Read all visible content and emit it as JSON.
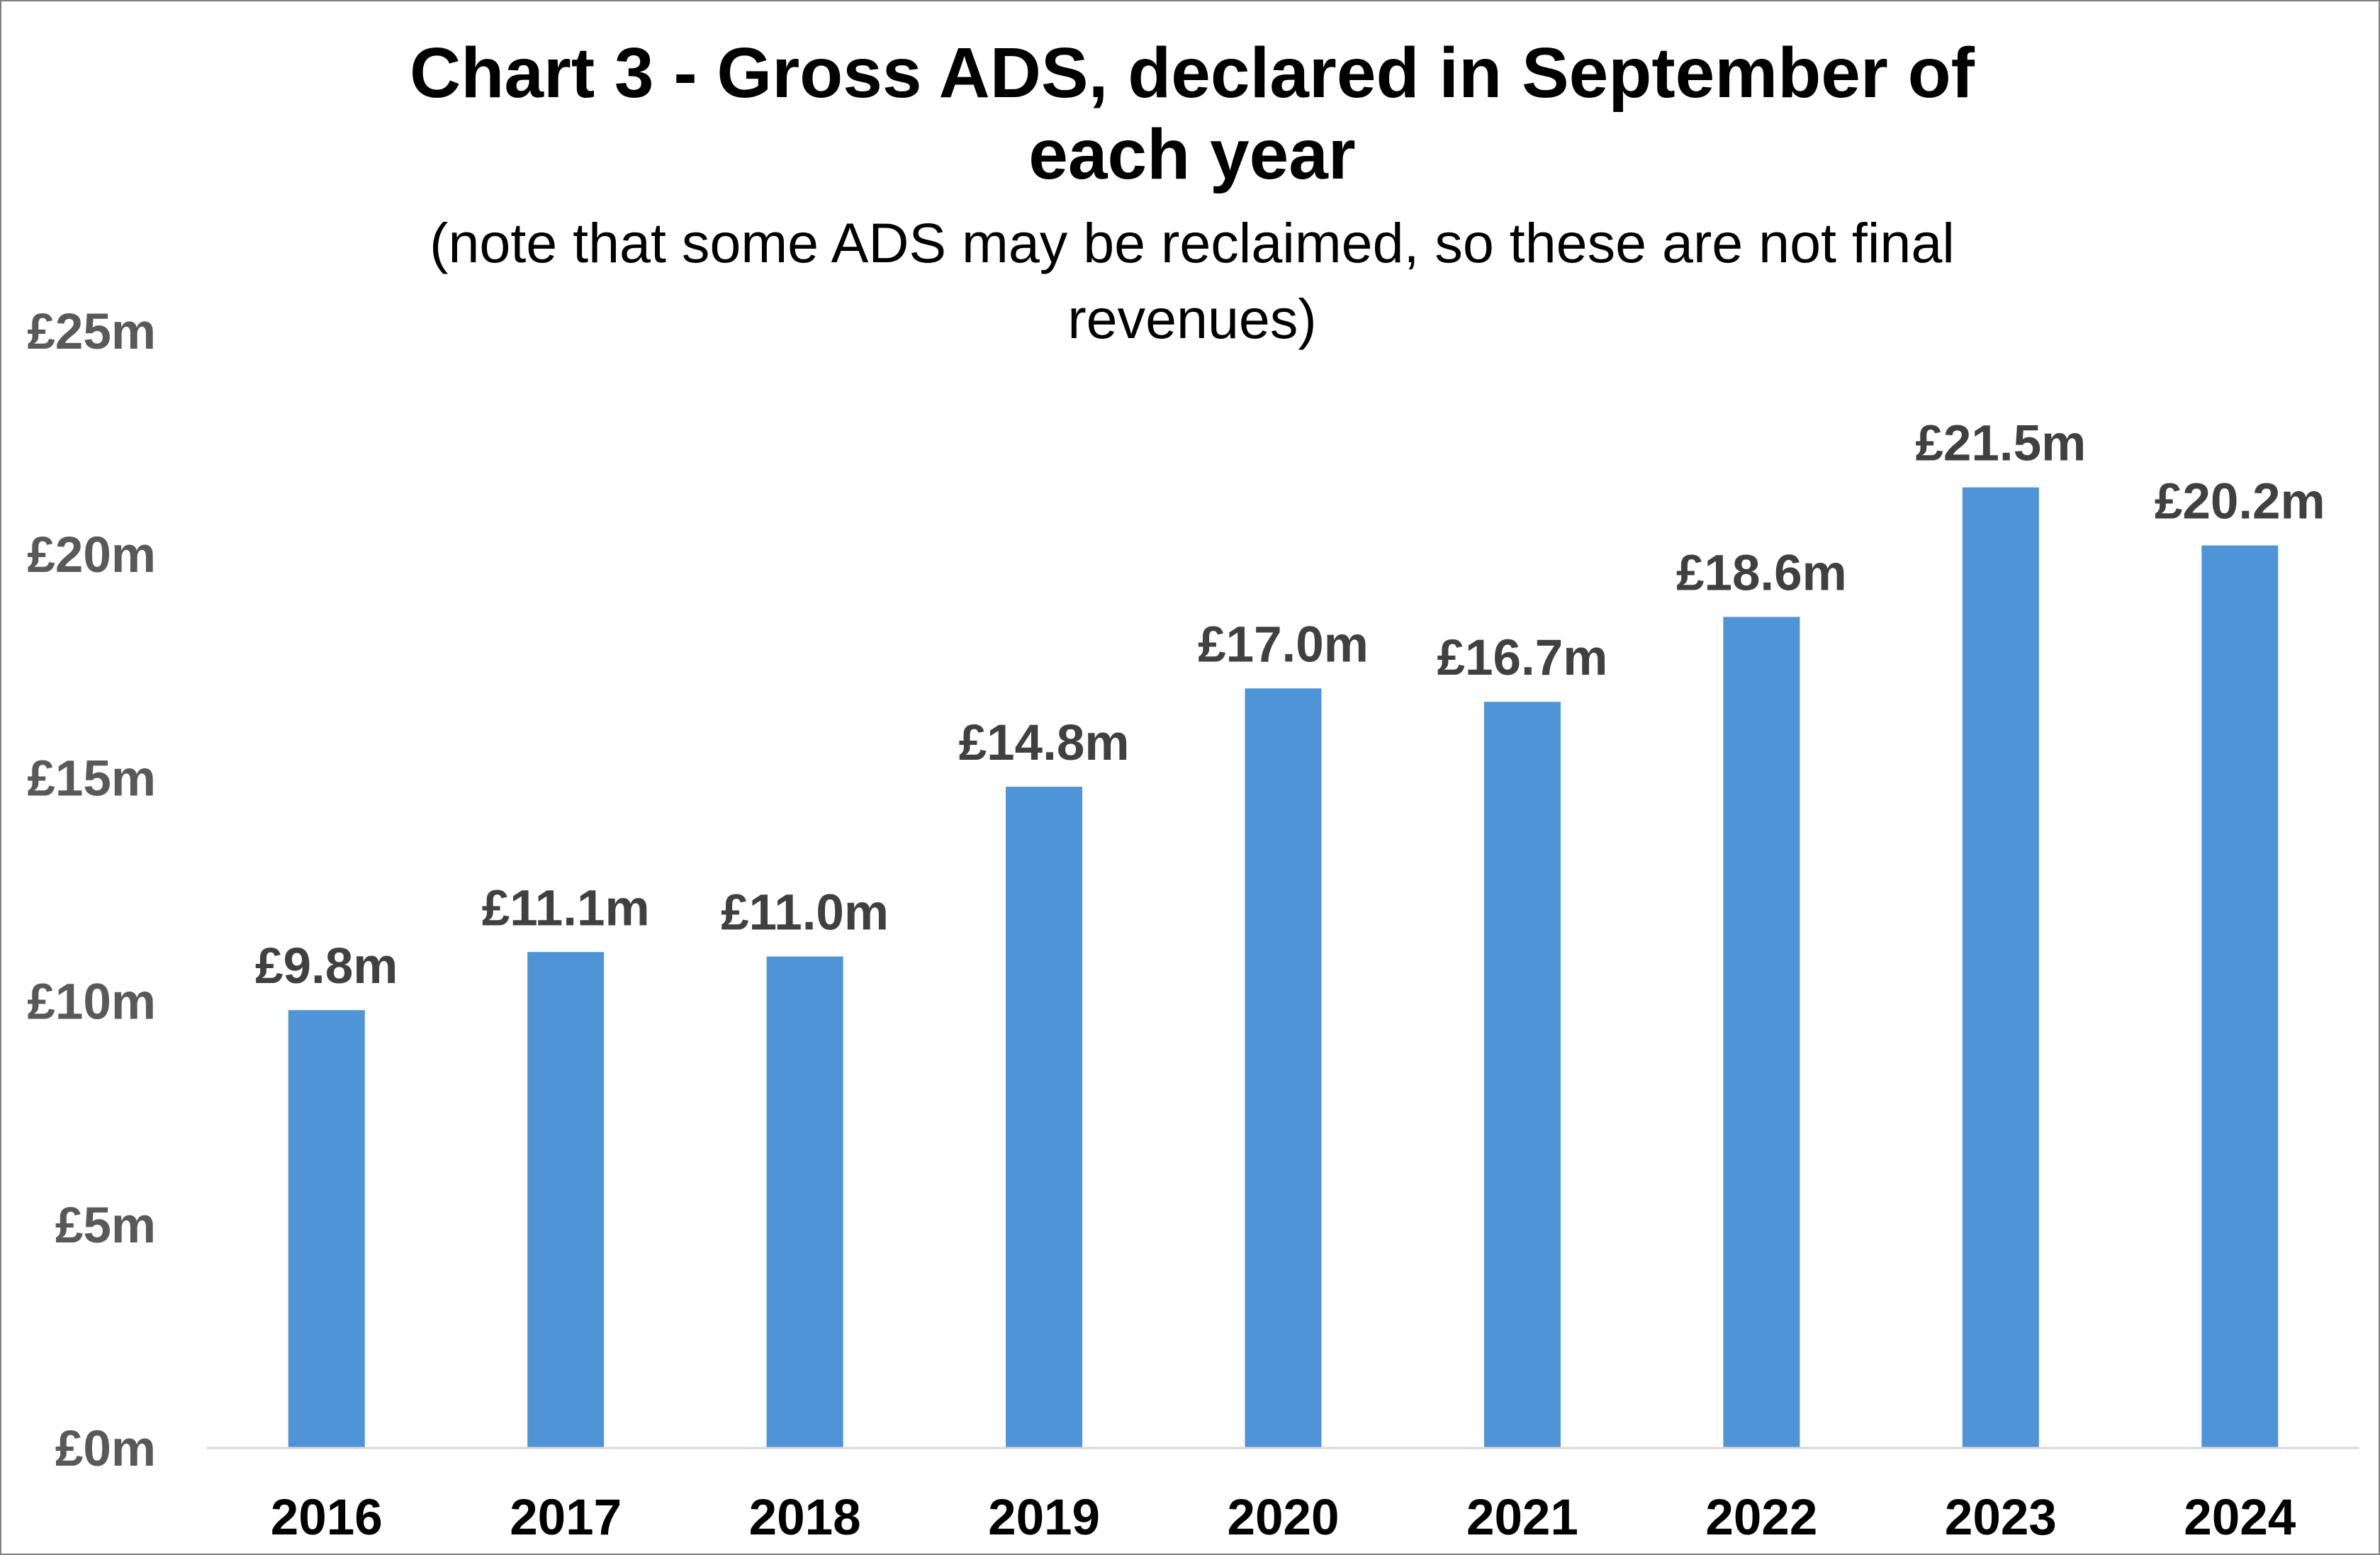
{
  "chart_data": {
    "type": "bar",
    "title_lines": [
      "Chart 3 - Gross ADS, declared in September of",
      "each year"
    ],
    "subtitle_lines": [
      "(note that some ADS may be reclaimed, so these are not final",
      "revenues)"
    ],
    "xlabel": "",
    "ylabel": "",
    "categories": [
      "2016",
      "2017",
      "2018",
      "2019",
      "2020",
      "2021",
      "2022",
      "2023",
      "2024"
    ],
    "values": [
      9.8,
      11.1,
      11.0,
      14.8,
      17.0,
      16.7,
      18.6,
      21.5,
      20.2
    ],
    "data_labels": [
      "£9.8m",
      "£11.1m",
      "£11.0m",
      "£14.8m",
      "£17.0m",
      "£16.7m",
      "£18.6m",
      "£21.5m",
      "£20.2m"
    ],
    "ylim": [
      0,
      25
    ],
    "yticks": [
      0,
      5,
      10,
      15,
      20,
      25
    ],
    "ytick_labels": [
      "£0m",
      "£5m",
      "£10m",
      "£15m",
      "£20m",
      "£25m"
    ],
    "grid": false,
    "legend": "none",
    "colors": {
      "bar": "#4f94d7",
      "axis": "#d9d9d9",
      "border": "#7f7f7f"
    }
  }
}
